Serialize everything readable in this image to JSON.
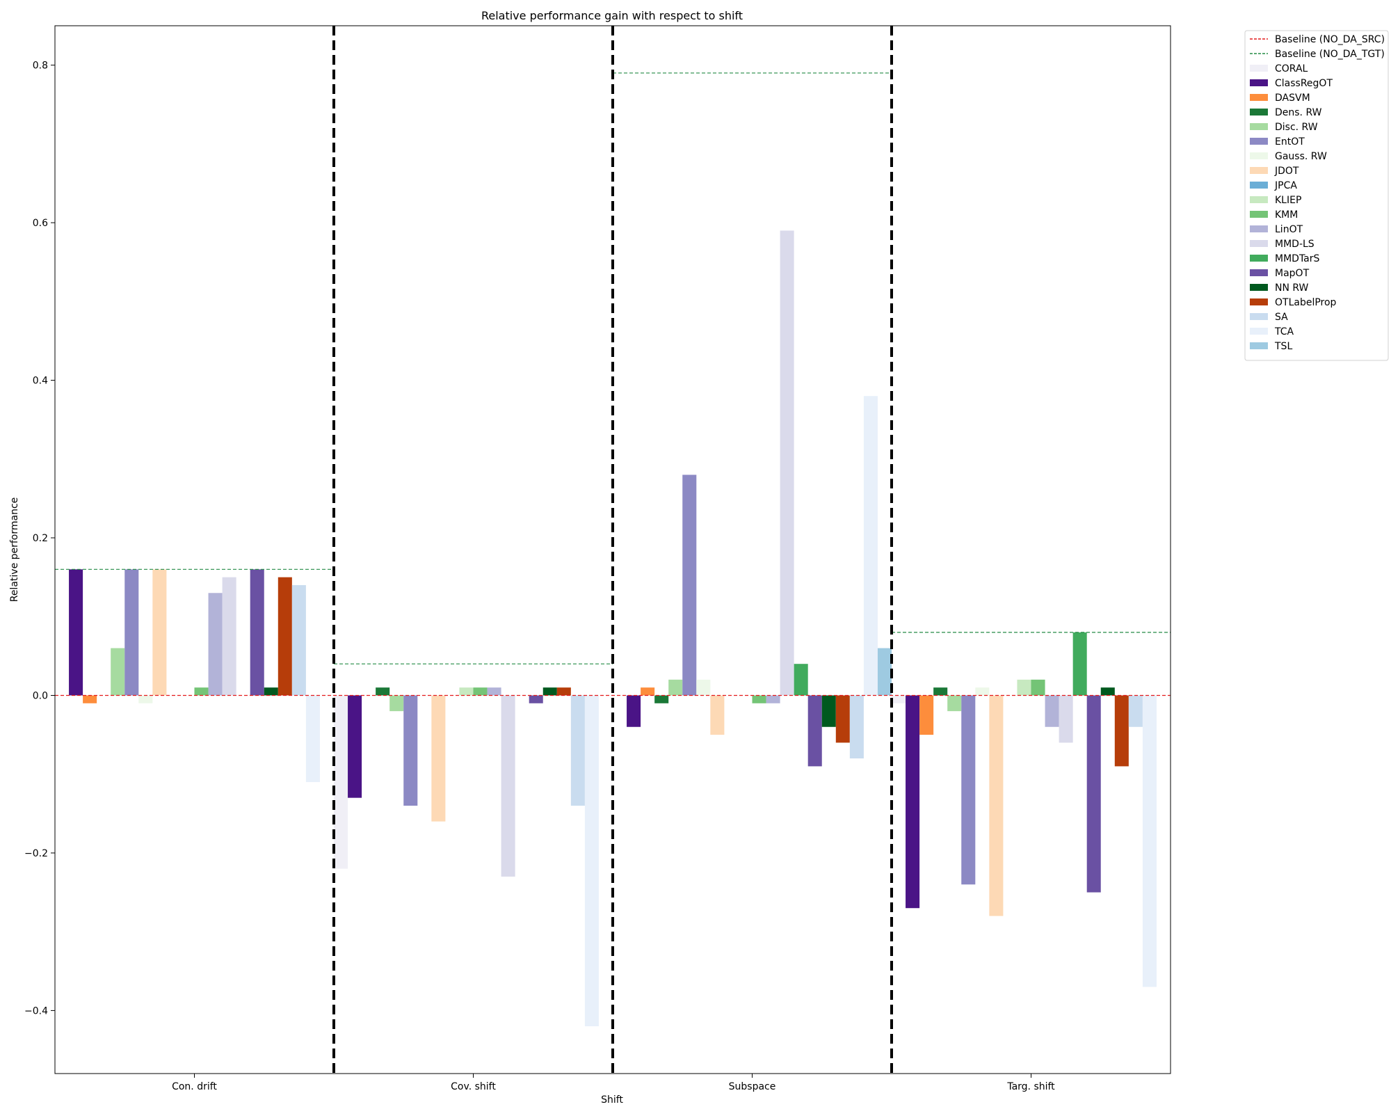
{
  "chart_data": {
    "type": "bar",
    "title": "Relative performance gain with respect to shift",
    "xlabel": "Shift",
    "ylabel": "Relative performance",
    "ylim": [
      -0.48,
      0.85
    ],
    "yticks": [
      -0.4,
      -0.2,
      0.0,
      0.2,
      0.4,
      0.6,
      0.8
    ],
    "ytick_labels": [
      "−0.4",
      "−0.2",
      "0.0",
      "0.2",
      "0.4",
      "0.6",
      "0.8"
    ],
    "categories": [
      "Con. drift",
      "Cov. shift",
      "Subspace",
      "Targ. shift"
    ],
    "grid": false,
    "legend_position": "outside-right",
    "baselines": [
      {
        "name": "Baseline (NO_DA_SRC)",
        "color": "#e31a1c",
        "values": [
          0.0,
          0.0,
          0.0,
          0.0
        ]
      },
      {
        "name": "Baseline (NO_DA_TGT)",
        "color": "#238b45",
        "values": [
          0.16,
          0.04,
          0.79,
          0.08
        ]
      }
    ],
    "series": [
      {
        "name": "CORAL",
        "color": "#f0eff6",
        "values": [
          0.0,
          -0.22,
          0.0,
          -0.01
        ]
      },
      {
        "name": "ClassRegOT",
        "color": "#4a1486",
        "values": [
          0.16,
          -0.13,
          -0.04,
          -0.27
        ]
      },
      {
        "name": "DASVM",
        "color": "#fd8d3c",
        "values": [
          -0.01,
          0.0,
          0.01,
          -0.05
        ]
      },
      {
        "name": "Dens. RW",
        "color": "#1b7837",
        "values": [
          0.0,
          0.01,
          -0.01,
          0.01
        ]
      },
      {
        "name": "Disc. RW",
        "color": "#a6dba0",
        "values": [
          0.06,
          -0.02,
          0.02,
          -0.02
        ]
      },
      {
        "name": "EntOT",
        "color": "#8c89c4",
        "values": [
          0.16,
          -0.14,
          0.28,
          -0.24
        ]
      },
      {
        "name": "Gauss. RW",
        "color": "#edf8e9",
        "values": [
          -0.01,
          0.0,
          0.02,
          0.01
        ]
      },
      {
        "name": "JDOT",
        "color": "#fdd9b5",
        "values": [
          0.16,
          -0.16,
          -0.05,
          -0.28
        ]
      },
      {
        "name": "JPCA",
        "color": "#6baed6",
        "values": [
          0.0,
          0.0,
          0.0,
          0.0
        ]
      },
      {
        "name": "KLIEP",
        "color": "#c7e9c0",
        "values": [
          0.0,
          0.01,
          0.0,
          0.02
        ]
      },
      {
        "name": "KMM",
        "color": "#74c476",
        "values": [
          0.01,
          0.01,
          -0.01,
          0.02
        ]
      },
      {
        "name": "LinOT",
        "color": "#b2b3d8",
        "values": [
          0.13,
          0.01,
          -0.01,
          -0.04
        ]
      },
      {
        "name": "MMD-LS",
        "color": "#dadaeb",
        "values": [
          0.15,
          -0.23,
          0.59,
          -0.06
        ]
      },
      {
        "name": "MMDTarS",
        "color": "#41ab5d",
        "values": [
          0.0,
          0.0,
          0.04,
          0.08
        ]
      },
      {
        "name": "MapOT",
        "color": "#6a51a3",
        "values": [
          0.16,
          -0.01,
          -0.09,
          -0.25
        ]
      },
      {
        "name": "NN RW",
        "color": "#00591f",
        "values": [
          0.01,
          0.01,
          -0.04,
          0.01
        ]
      },
      {
        "name": "OTLabelProp",
        "color": "#b63d0a",
        "values": [
          0.15,
          0.01,
          -0.06,
          -0.09
        ]
      },
      {
        "name": "SA",
        "color": "#c9dcef",
        "values": [
          0.14,
          -0.14,
          -0.08,
          -0.04
        ]
      },
      {
        "name": "TCA",
        "color": "#e8f0fa",
        "values": [
          -0.11,
          -0.42,
          0.38,
          -0.37
        ]
      },
      {
        "name": "TSL",
        "color": "#9ecae1",
        "values": [
          0.0,
          0.0,
          0.06,
          0.0
        ]
      }
    ]
  }
}
